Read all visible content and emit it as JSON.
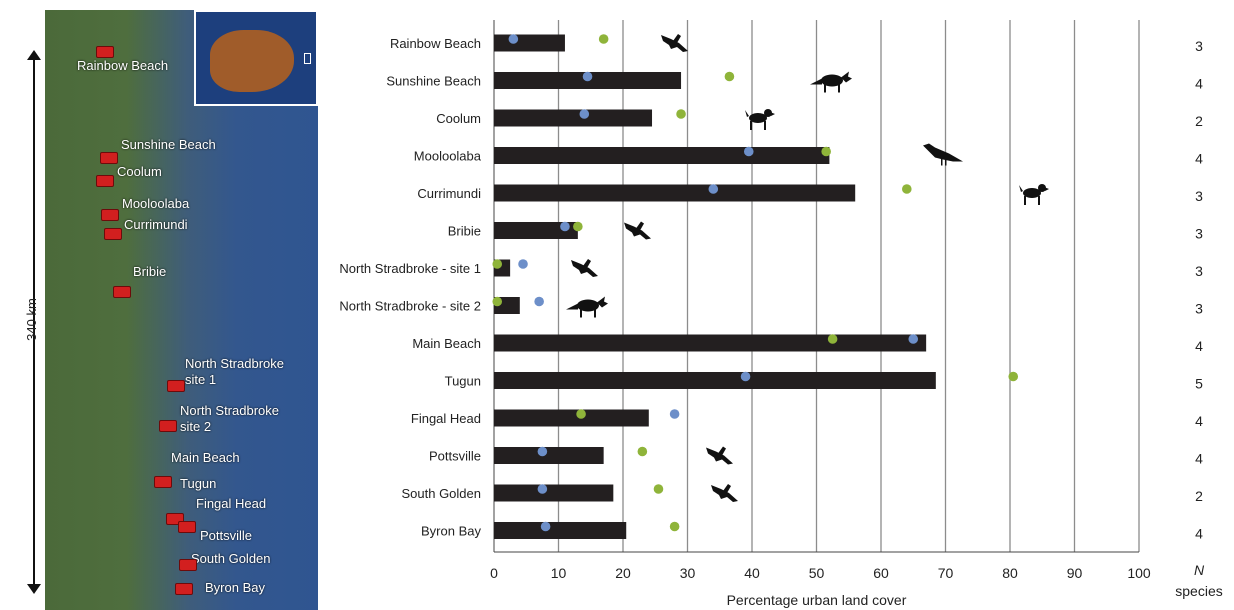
{
  "map": {
    "scale_label": "340 km",
    "sites": [
      {
        "label": "Rainbow Beach"
      },
      {
        "label": "Sunshine Beach"
      },
      {
        "label": "Coolum"
      },
      {
        "label": "Mooloolaba"
      },
      {
        "label": "Currimundi"
      },
      {
        "label": "Bribie"
      },
      {
        "label": "North Stradbroke site 1"
      },
      {
        "label": "North Stradbroke site 2"
      },
      {
        "label": "Main Beach"
      },
      {
        "label": "Tugun"
      },
      {
        "label": "Fingal Head"
      },
      {
        "label": "Pottsville"
      },
      {
        "label": "South Golden"
      },
      {
        "label": "Byron Bay"
      }
    ]
  },
  "chart_data": {
    "type": "bar",
    "orientation": "horizontal",
    "title": "",
    "xlabel": "Percentage urban land cover",
    "xlim": [
      0,
      100
    ],
    "xticks": [
      0,
      10,
      20,
      30,
      40,
      50,
      60,
      70,
      80,
      90,
      100
    ],
    "grid": "vertical",
    "bar_color": "#231f20",
    "categories": [
      "Rainbow Beach",
      "Sunshine Beach",
      "Coolum",
      "Mooloolaba",
      "Currimundi",
      "Bribie",
      "North Stradbroke - site 1",
      "North Stradbroke - site 2",
      "Main Beach",
      "Tugun",
      "Fingal Head",
      "Pottsville",
      "South Golden",
      "Byron Bay"
    ],
    "values": [
      11,
      29,
      24.5,
      52,
      56,
      13,
      2.5,
      4,
      67,
      68.5,
      24,
      17,
      18.5,
      20.5
    ],
    "series": [
      {
        "color": "#6d8fc9",
        "values": [
          3,
          14.5,
          14,
          39.5,
          34,
          11,
          4.5,
          7,
          65,
          39,
          28,
          7.5,
          7.5,
          8
        ]
      },
      {
        "color": "#8fb43a",
        "values": [
          17,
          36.5,
          29,
          51.5,
          64,
          13,
          0.5,
          0.5,
          52.5,
          80.5,
          13.5,
          23,
          25.5,
          28
        ]
      }
    ],
    "icons": [
      "raptor-icon",
      "fox-icon",
      "dog-icon",
      "crow-icon",
      "dog-icon",
      "raptor-icon",
      "raptor-icon",
      "fox-icon",
      "",
      "",
      "",
      "raptor-icon",
      "raptor-icon",
      ""
    ],
    "n_species": [
      3,
      4,
      2,
      4,
      3,
      3,
      3,
      3,
      4,
      5,
      4,
      4,
      2,
      4
    ],
    "n_label_1": "N",
    "n_label_2": "species"
  }
}
